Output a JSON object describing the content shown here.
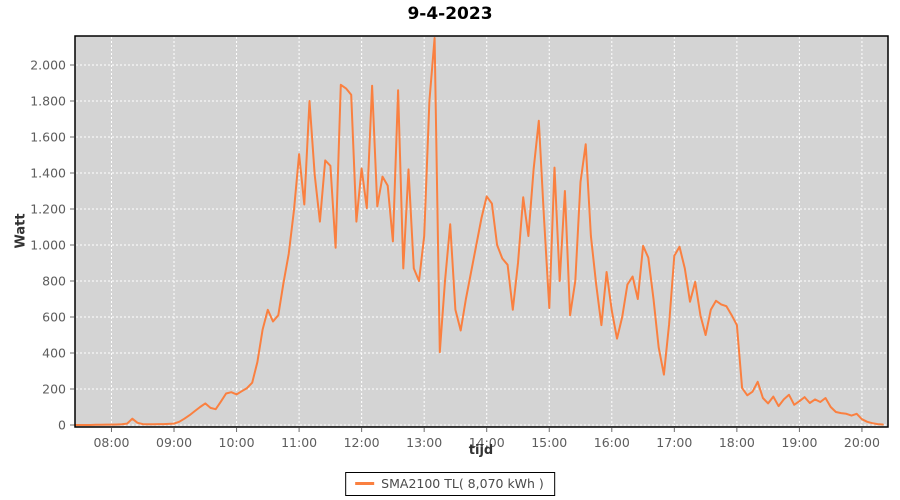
{
  "title": "9-4-2023",
  "axes": {
    "y_label": "Watt",
    "x_label": "tijd"
  },
  "legend": {
    "label": "SMA2100 TL( 8,070 kWh )"
  },
  "colors": {
    "line": "#fa8040",
    "plot_bg": "#d4d4d4",
    "grid": "#ffffff",
    "plot_border": "#000000",
    "tick_mark": "#6e6e6e",
    "tick_text": "#5d5d5d",
    "page_bg": "#ffffff"
  },
  "chart_data": {
    "type": "line",
    "title": "9-4-2023",
    "xlabel": "tijd",
    "ylabel": "Watt",
    "grid": true,
    "legend_position": "bottom",
    "xlim_minutes": [
      445,
      1225
    ],
    "ylim": [
      0,
      2160
    ],
    "x_ticks": [
      "08:00",
      "09:00",
      "10:00",
      "11:00",
      "12:00",
      "13:00",
      "14:00",
      "15:00",
      "16:00",
      "17:00",
      "18:00",
      "19:00",
      "20:00"
    ],
    "y_ticks": [
      {
        "value": 0,
        "label": "0"
      },
      {
        "value": 200,
        "label": "200"
      },
      {
        "value": 400,
        "label": "400"
      },
      {
        "value": 600,
        "label": "600"
      },
      {
        "value": 800,
        "label": "800"
      },
      {
        "value": 1000,
        "label": "1.000"
      },
      {
        "value": 1200,
        "label": "1.200"
      },
      {
        "value": 1400,
        "label": "1.400"
      },
      {
        "value": 1600,
        "label": "1.600"
      },
      {
        "value": 1800,
        "label": "1.800"
      },
      {
        "value": 2000,
        "label": "2.000"
      }
    ],
    "series": [
      {
        "name": "SMA2100 TL( 8,070 kWh )",
        "unit": "Watt",
        "x": [
          "07:25",
          "07:30",
          "07:35",
          "07:40",
          "07:45",
          "07:50",
          "07:55",
          "08:00",
          "08:05",
          "08:10",
          "08:15",
          "08:20",
          "08:25",
          "08:30",
          "08:35",
          "08:40",
          "08:45",
          "08:50",
          "08:55",
          "09:00",
          "09:05",
          "09:10",
          "09:15",
          "09:20",
          "09:25",
          "09:30",
          "09:35",
          "09:40",
          "09:45",
          "09:50",
          "09:55",
          "10:00",
          "10:05",
          "10:10",
          "10:15",
          "10:20",
          "10:25",
          "10:30",
          "10:35",
          "10:40",
          "10:45",
          "10:50",
          "10:55",
          "11:00",
          "11:05",
          "11:10",
          "11:15",
          "11:20",
          "11:25",
          "11:30",
          "11:35",
          "11:40",
          "11:45",
          "11:50",
          "11:55",
          "12:00",
          "12:05",
          "12:10",
          "12:15",
          "12:20",
          "12:25",
          "12:30",
          "12:35",
          "12:40",
          "12:45",
          "12:50",
          "12:55",
          "13:00",
          "13:05",
          "13:10",
          "13:15",
          "13:20",
          "13:25",
          "13:30",
          "13:35",
          "13:40",
          "13:45",
          "13:50",
          "13:55",
          "14:00",
          "14:05",
          "14:10",
          "14:15",
          "14:20",
          "14:25",
          "14:30",
          "14:35",
          "14:40",
          "14:45",
          "14:50",
          "14:55",
          "15:00",
          "15:05",
          "15:10",
          "15:15",
          "15:20",
          "15:25",
          "15:30",
          "15:35",
          "15:40",
          "15:45",
          "15:50",
          "15:55",
          "16:00",
          "16:05",
          "16:10",
          "16:15",
          "16:20",
          "16:25",
          "16:30",
          "16:35",
          "16:40",
          "16:45",
          "16:50",
          "16:55",
          "17:00",
          "17:05",
          "17:10",
          "17:15",
          "17:20",
          "17:25",
          "17:30",
          "17:35",
          "17:40",
          "17:45",
          "17:50",
          "17:55",
          "18:00",
          "18:05",
          "18:10",
          "18:15",
          "18:20",
          "18:25",
          "18:30",
          "18:35",
          "18:40",
          "18:45",
          "18:50",
          "18:55",
          "19:00",
          "19:05",
          "19:10",
          "19:15",
          "19:20",
          "19:25",
          "19:30",
          "19:35",
          "19:40",
          "19:45",
          "19:50",
          "19:55",
          "20:00",
          "20:05",
          "20:10",
          "20:15",
          "20:20"
        ],
        "values": [
          0,
          0,
          0,
          0,
          1,
          1,
          2,
          2,
          3,
          4,
          8,
          35,
          12,
          5,
          4,
          4,
          5,
          5,
          6,
          8,
          18,
          35,
          55,
          78,
          100,
          120,
          95,
          88,
          130,
          175,
          182,
          170,
          188,
          205,
          235,
          350,
          530,
          640,
          575,
          610,
          790,
          950,
          1190,
          1505,
          1225,
          1800,
          1390,
          1130,
          1470,
          1440,
          985,
          1890,
          1870,
          1835,
          1130,
          1425,
          1205,
          1885,
          1215,
          1380,
          1330,
          1020,
          1860,
          870,
          1420,
          870,
          800,
          1050,
          1800,
          2150,
          405,
          800,
          1115,
          640,
          525,
          700,
          850,
          1000,
          1150,
          1270,
          1230,
          1000,
          925,
          890,
          640,
          900,
          1265,
          1050,
          1420,
          1690,
          1150,
          650,
          1430,
          800,
          1300,
          610,
          800,
          1350,
          1560,
          1050,
          780,
          555,
          850,
          635,
          480,
          600,
          780,
          825,
          700,
          995,
          930,
          700,
          430,
          280,
          560,
          940,
          990,
          870,
          685,
          795,
          610,
          500,
          640,
          690,
          670,
          660,
          610,
          555,
          205,
          165,
          185,
          240,
          150,
          120,
          158,
          105,
          142,
          168,
          112,
          132,
          155,
          122,
          142,
          128,
          150,
          100,
          72,
          66,
          62,
          52,
          62,
          32,
          18,
          10,
          5,
          3
        ]
      }
    ]
  }
}
